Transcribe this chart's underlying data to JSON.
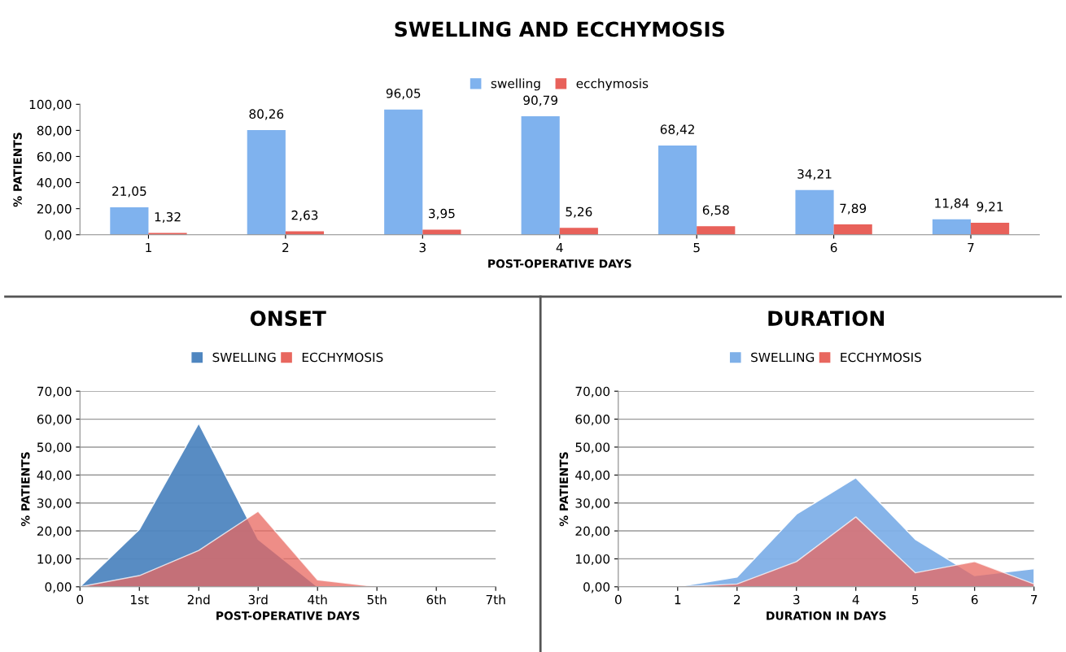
{
  "chart_data": [
    {
      "type": "bar",
      "title": "SWELLING AND ECCHYMOSIS",
      "xlabel": "POST-OPERATIVE DAYS",
      "ylabel": "% PATIENTS",
      "categories": [
        "1",
        "2",
        "3",
        "4",
        "5",
        "6",
        "7"
      ],
      "series": [
        {
          "name": "swelling",
          "color": "#7fb2ee",
          "values": [
            21.05,
            80.26,
            96.05,
            90.79,
            68.42,
            34.21,
            11.84
          ],
          "value_labels": [
            "21,05",
            "80,26",
            "96,05",
            "90,79",
            "68,42",
            "34,21",
            "11,84"
          ]
        },
        {
          "name": "ecchymosis",
          "color": "#e8615a",
          "values": [
            1.32,
            2.63,
            3.95,
            5.26,
            6.58,
            7.89,
            9.21
          ],
          "value_labels": [
            "1,32",
            "2,63",
            "3,95",
            "5,26",
            "6,58",
            "7,89",
            "9,21"
          ]
        }
      ],
      "ylim": [
        0,
        100
      ],
      "yticks": [
        {
          "value": 0,
          "label": "0,00"
        },
        {
          "value": 20,
          "label": "20,00"
        },
        {
          "value": 40,
          "label": "40,00"
        },
        {
          "value": 60,
          "label": "60,00"
        },
        {
          "value": 80,
          "label": "80,00"
        },
        {
          "value": 100,
          "label": "100,00"
        }
      ],
      "legend": "top",
      "grid": false
    },
    {
      "type": "area",
      "title": "ONSET",
      "xlabel": "POST-OPERATIVE DAYS",
      "ylabel": "% PATIENTS",
      "categories": [
        "0",
        "1st",
        "2nd",
        "3rd",
        "4th",
        "5th",
        "6th",
        "7th"
      ],
      "series": [
        {
          "name": "SWELLING",
          "color": "#4f86c0",
          "values": [
            0,
            20.5,
            58.5,
            17,
            0,
            0,
            0,
            0
          ]
        },
        {
          "name": "ECCHYMOSIS",
          "color": "#e8675f",
          "values": [
            0,
            4,
            13,
            27,
            2.5,
            0,
            0,
            0
          ]
        }
      ],
      "ylim": [
        0,
        70
      ],
      "yticks": [
        {
          "value": 0,
          "label": "0,00"
        },
        {
          "value": 10,
          "label": "10,00"
        },
        {
          "value": 20,
          "label": "20,00"
        },
        {
          "value": 30,
          "label": "30,00"
        },
        {
          "value": 40,
          "label": "40,00"
        },
        {
          "value": 50,
          "label": "50,00"
        },
        {
          "value": 60,
          "label": "60,00"
        },
        {
          "value": 70,
          "label": "70,00"
        }
      ],
      "legend": "top",
      "grid": "y"
    },
    {
      "type": "area",
      "title": "DURATION",
      "xlabel": "DURATION IN DAYS",
      "ylabel": "% PATIENTS",
      "x": [
        0,
        1,
        2,
        3,
        4,
        5,
        6,
        7
      ],
      "series": [
        {
          "name": "SWELLING",
          "color": "#7fb0e8",
          "values": [
            0,
            0,
            3.5,
            26,
            39,
            17,
            4,
            6.5
          ]
        },
        {
          "name": "ECCHYMOSIS",
          "color": "#e8675f",
          "values": [
            0,
            0,
            1,
            9,
            25,
            5,
            9,
            1
          ]
        }
      ],
      "xlim": [
        0,
        7
      ],
      "xticks": [
        0,
        1,
        2,
        3,
        4,
        5,
        6,
        7
      ],
      "ylim": [
        0,
        70
      ],
      "yticks": [
        {
          "value": 0,
          "label": "0,00"
        },
        {
          "value": 10,
          "label": "10,00"
        },
        {
          "value": 20,
          "label": "20,00"
        },
        {
          "value": 30,
          "label": "30,00"
        },
        {
          "value": 40,
          "label": "40,00"
        },
        {
          "value": 50,
          "label": "50,00"
        },
        {
          "value": 60,
          "label": "60,00"
        },
        {
          "value": 70,
          "label": "70,00"
        }
      ],
      "legend": "top",
      "grid": "y"
    }
  ]
}
